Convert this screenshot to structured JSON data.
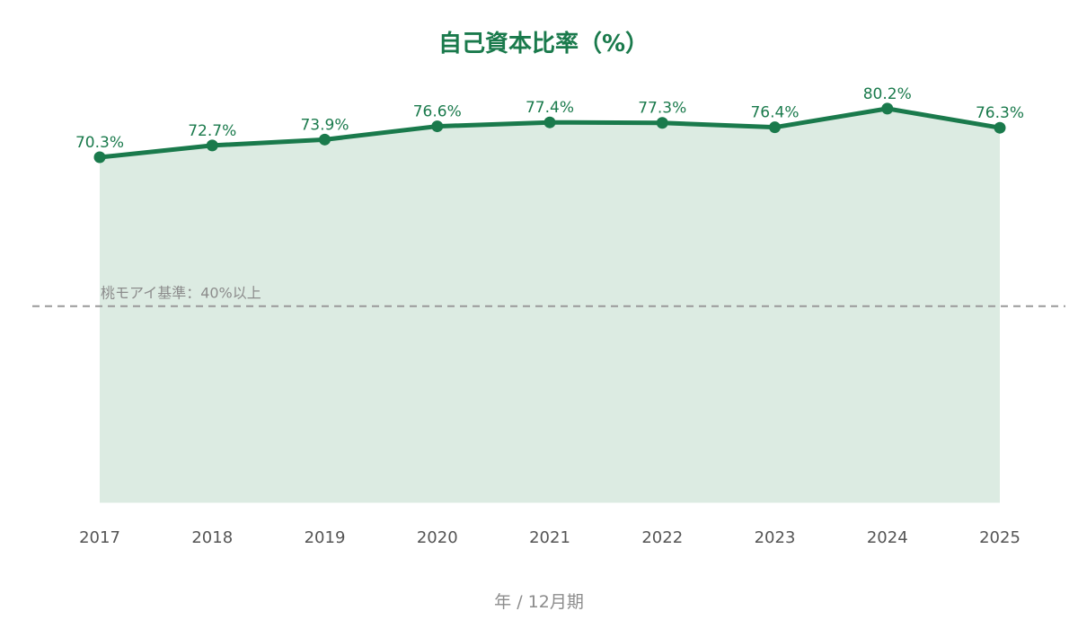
{
  "chart_data": {
    "type": "area",
    "title": "自己資本比率（%）",
    "xlabel": "年 / 12月期",
    "ylabel": "",
    "x": [
      "2017",
      "2018",
      "2019",
      "2020",
      "2021",
      "2022",
      "2023",
      "2024",
      "2025"
    ],
    "series": [
      {
        "values": [
          70.3,
          72.7,
          73.9,
          76.6,
          77.4,
          77.3,
          76.4,
          80.2,
          76.3
        ],
        "labels": [
          "70.3%",
          "72.7%",
          "73.9%",
          "76.6%",
          "77.4%",
          "77.3%",
          "76.4%",
          "80.2%",
          "76.3%"
        ]
      }
    ],
    "reference_line": {
      "value": 40,
      "label": "桃モアイ基準：40%以上",
      "style": "dashed"
    },
    "ylim": [
      0,
      100
    ],
    "grid": false,
    "legend": "none",
    "colors": {
      "line": "#1a7a4c",
      "fill": "#dcebe2",
      "title": "#1a7a4c",
      "value_label": "#1a7a4c",
      "reference": "#999999",
      "tick": "#555555",
      "xlabel": "#8c8c8c"
    }
  }
}
